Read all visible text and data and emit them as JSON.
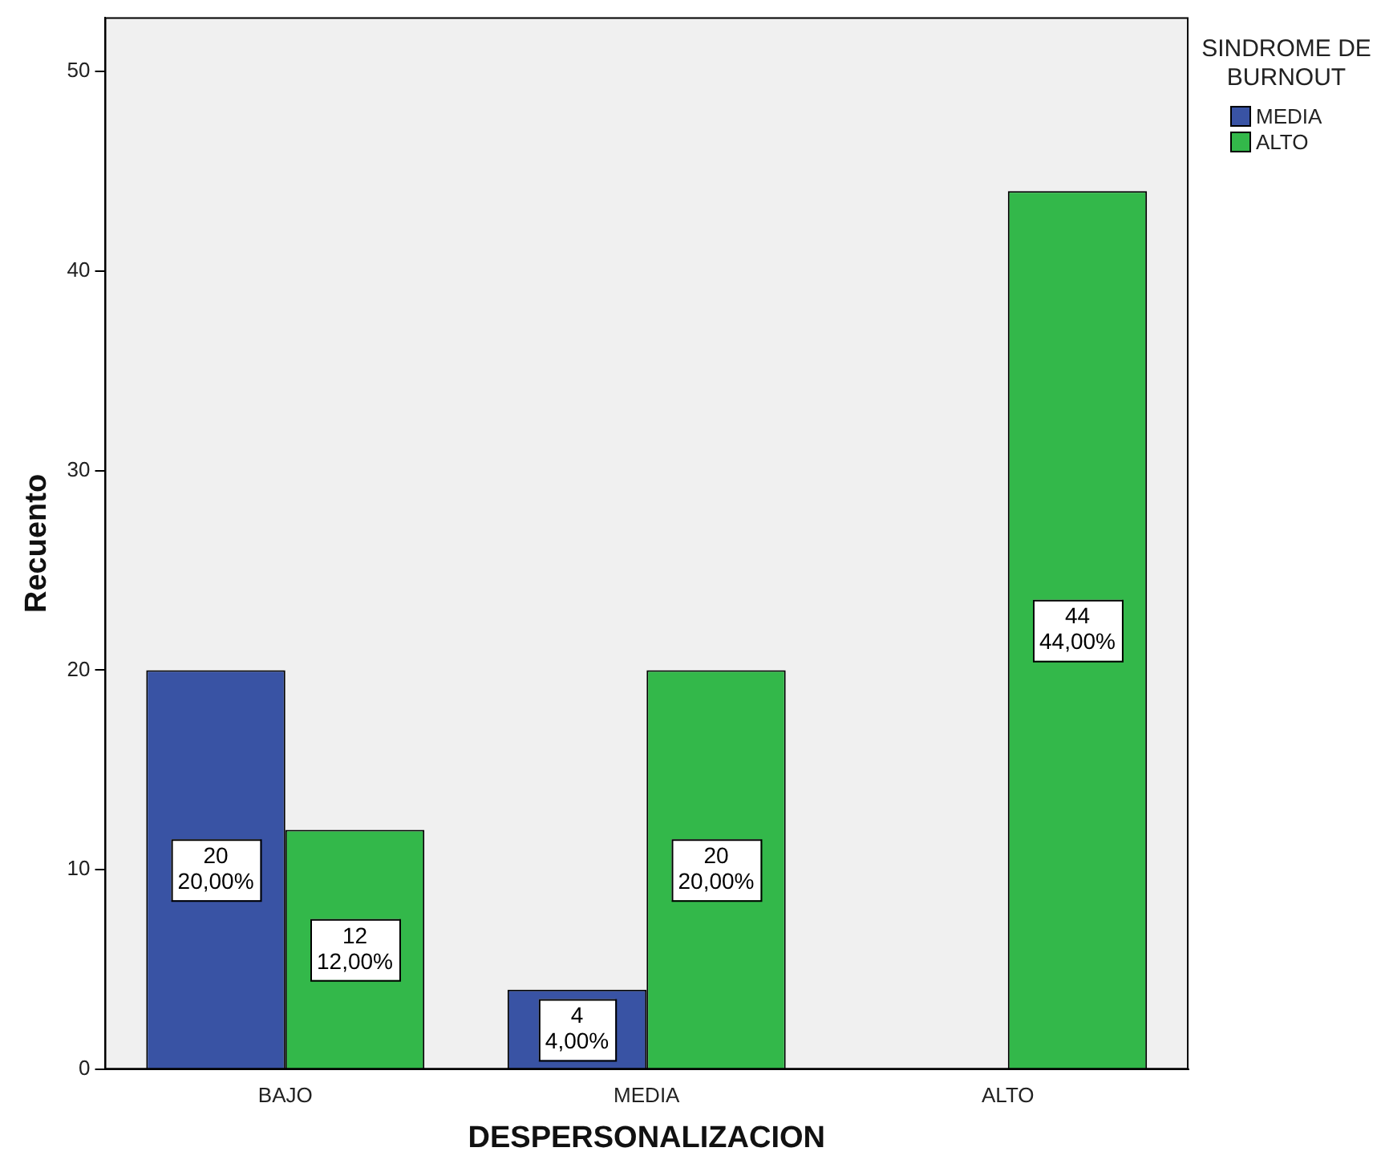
{
  "chart_data": {
    "type": "bar",
    "xlabel": "DESPERSONALIZACION",
    "ylabel": "Recuento",
    "legend_title": "SINDROME DE BURNOUT",
    "legend": "top right",
    "grid": false,
    "categories": [
      "BAJO",
      "MEDIA",
      "ALTO"
    ],
    "ylim": [
      0,
      52.7
    ],
    "yticks": [
      0,
      10,
      20,
      30,
      40,
      50
    ],
    "series": [
      {
        "name": "MEDIA",
        "color": "#3953a4",
        "values": [
          20,
          4,
          null
        ],
        "value_labels": [
          "20\n20,00%",
          "4\n4,00%",
          null
        ]
      },
      {
        "name": "ALTO",
        "color": "#33b84a",
        "values": [
          12,
          20,
          44
        ],
        "value_labels": [
          "12\n12,00%",
          "20\n20,00%",
          "44\n44,00%"
        ]
      }
    ]
  }
}
